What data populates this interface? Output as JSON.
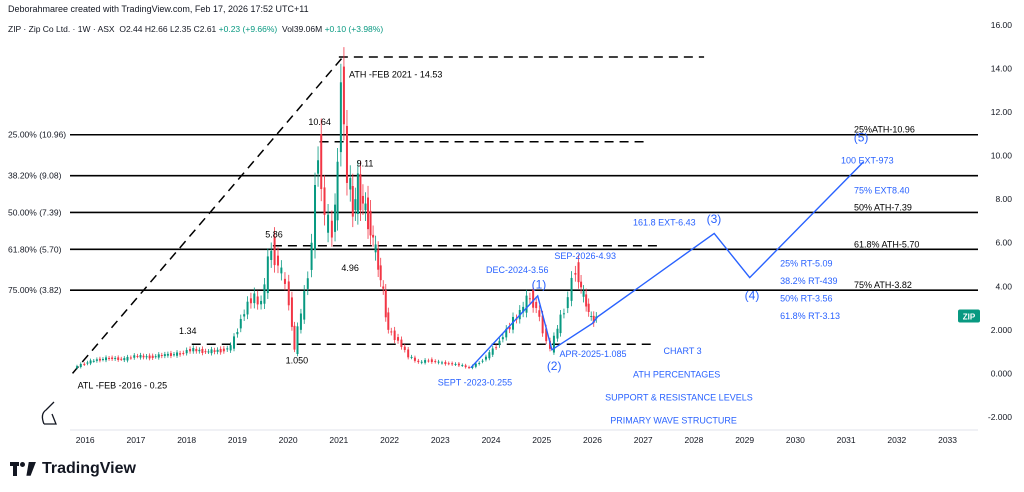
{
  "header": {
    "author_line": "Deborahmaree created with TradingView.com, Feb 17, 2026 17:52 UTC+11"
  },
  "legend": {
    "symbol": "ZIP · Zip Co Ltd. · 1W · ASX",
    "o": "O2.44",
    "h": "H2.66",
    "l": "L2.35",
    "c": "C2.61",
    "change": "+0.23 (+9.66%)",
    "vol_label": "Vol",
    "vol": "39.06M",
    "vol_change": "+0.10 (+3.98%)"
  },
  "brand": {
    "name": "TradingView"
  },
  "ticker_badge": "ZIP",
  "colors": {
    "up": "#089981",
    "down": "#f23645",
    "annotation": "#2962ff",
    "level": "#000000"
  },
  "chart_data": {
    "type": "line",
    "symbol": "ZIP",
    "ylim": [
      -2.6,
      16
    ],
    "y_ticks": [
      "16.00",
      "14.00",
      "12.00",
      "10.00",
      "8.00",
      "6.00",
      "4.00",
      "2.000",
      "0.000",
      "-2.000"
    ],
    "y_tick_values": [
      16,
      14,
      12,
      10,
      8,
      6,
      4,
      2,
      0,
      -2
    ],
    "x_ticks": [
      "2016",
      "2017",
      "2018",
      "2019",
      "2020",
      "2021",
      "2022",
      "2023",
      "2024",
      "2025",
      "2026",
      "2027",
      "2028",
      "2029",
      "2030",
      "2031",
      "2032",
      "2033"
    ],
    "x_tick_values": [
      2016,
      2017,
      2018,
      2019,
      2020,
      2021,
      2022,
      2023,
      2024,
      2025,
      2026,
      2027,
      2028,
      2029,
      2030,
      2031,
      2032,
      2033
    ],
    "xlim": [
      2015.7,
      2033.6
    ],
    "price_series": {
      "x": [
        2015.8,
        2015.95,
        2016.2,
        2016.5,
        2016.8,
        2017.0,
        2017.3,
        2017.6,
        2017.9,
        2018.1,
        2018.4,
        2018.7,
        2018.9,
        2019.1,
        2019.3,
        2019.5,
        2019.7,
        2019.9,
        2020.05,
        2020.15,
        2020.22,
        2020.35,
        2020.5,
        2020.62,
        2020.75,
        2020.9,
        2021.0,
        2021.08,
        2021.12,
        2021.2,
        2021.3,
        2021.4,
        2021.5,
        2021.6,
        2021.7,
        2021.8,
        2021.9,
        2022.0,
        2022.2,
        2022.4,
        2022.6,
        2022.8,
        2023.0,
        2023.2,
        2023.4,
        2023.6,
        2023.8,
        2024.0,
        2024.2,
        2024.4,
        2024.6,
        2024.8,
        2024.92,
        2025.05,
        2025.2,
        2025.28,
        2025.4,
        2025.55,
        2025.7,
        2025.8,
        2025.9,
        2026.0,
        2026.1
      ],
      "y": [
        0.25,
        0.4,
        0.6,
        0.7,
        0.65,
        0.8,
        0.75,
        0.85,
        0.9,
        1.1,
        1.0,
        1.05,
        1.2,
        2.5,
        3.5,
        3.2,
        5.86,
        4.5,
        3.4,
        1.05,
        2.0,
        3.5,
        6.0,
        10.64,
        7.0,
        6.5,
        9.0,
        14.53,
        11.0,
        9.11,
        7.5,
        8.5,
        7.8,
        7.2,
        6.0,
        4.96,
        3.6,
        2.0,
        1.5,
        0.8,
        0.5,
        0.6,
        0.5,
        0.45,
        0.4,
        0.255,
        0.5,
        0.9,
        1.5,
        2.2,
        2.8,
        3.56,
        3.0,
        2.0,
        1.085,
        1.6,
        2.5,
        3.5,
        4.93,
        3.8,
        3.2,
        2.44,
        2.61
      ]
    },
    "levels": [
      {
        "pct": "25.00% (10.96)",
        "value": 10.96,
        "label": "25%ATH-10.96"
      },
      {
        "pct": "38.20% (9.08)",
        "value": 9.08,
        "label": "75% EXT8.40",
        "label_value": 8.4
      },
      {
        "pct": "50.00% (7.39)",
        "value": 7.39,
        "label": "50% ATH-7.39"
      },
      {
        "pct": "61.80% (5.70)",
        "value": 5.7,
        "label": "61.8% ATH-5.70"
      },
      {
        "pct": "75.00% (3.82)",
        "value": 3.82,
        "label": "75% ATH-3.82"
      }
    ],
    "dashed_levels": [
      {
        "y": 14.53,
        "x0": 2021.0,
        "x1": 2028.2
      },
      {
        "y": 10.64,
        "x0": 2020.62,
        "x1": 2027.1
      },
      {
        "y": 5.86,
        "x0": 2019.7,
        "x1": 2027.3
      },
      {
        "y": 3.82,
        "x0": 2020.2,
        "x1": 2027.2
      },
      {
        "y": 1.34,
        "x0": 2018.1,
        "x1": 2027.2
      }
    ],
    "black_trend": {
      "x": [
        2015.75,
        2021.08
      ],
      "y": [
        0.0,
        14.53
      ]
    },
    "blue_wave": {
      "x": [
        2023.6,
        2024.92,
        2025.2,
        2026.0,
        2026.1,
        2028.4,
        2029.1,
        2031.35
      ],
      "y": [
        0.255,
        3.56,
        1.085,
        2.3,
        2.6,
        6.43,
        4.4,
        9.73
      ]
    },
    "annotations": [
      {
        "text": "ATH -FEB 2021 - 14.53",
        "x": 2021.2,
        "y": 13.6,
        "color": "#000000"
      },
      {
        "text": "10.64",
        "x": 2020.4,
        "y": 11.4,
        "color": "#000000"
      },
      {
        "text": "9.11",
        "x": 2021.35,
        "y": 9.5,
        "color": "#000000"
      },
      {
        "text": "5.86",
        "x": 2019.55,
        "y": 6.25,
        "color": "#000000"
      },
      {
        "text": "4.96",
        "x": 2021.05,
        "y": 4.7,
        "color": "#000000"
      },
      {
        "text": "1.34",
        "x": 2017.85,
        "y": 1.8,
        "color": "#000000"
      },
      {
        "text": "1.050",
        "x": 2019.95,
        "y": 0.45,
        "color": "#000000"
      },
      {
        "text": "ATL -FEB -2016 - 0.25",
        "x": 2015.85,
        "y": -0.7,
        "color": "#000000"
      },
      {
        "text": "DEC-2024-3.56",
        "x": 2023.9,
        "y": 4.6,
        "color": "#2962ff"
      },
      {
        "text": "(1)",
        "x": 2024.8,
        "y": 3.9,
        "color": "#2962ff",
        "size": 12
      },
      {
        "text": "SEP-2026-4.93",
        "x": 2025.25,
        "y": 5.25,
        "color": "#2962ff"
      },
      {
        "text": "(2)",
        "x": 2025.1,
        "y": 0.15,
        "color": "#2962ff",
        "size": 12
      },
      {
        "text": "APR-2025-1.085",
        "x": 2025.35,
        "y": 0.75,
        "color": "#2962ff"
      },
      {
        "text": "SEPT -2023-0.255",
        "x": 2022.95,
        "y": -0.55,
        "color": "#2962ff"
      },
      {
        "text": "161.8 EXT-6.43",
        "x": 2026.8,
        "y": 6.8,
        "color": "#2962ff"
      },
      {
        "text": "(3)",
        "x": 2028.25,
        "y": 6.9,
        "color": "#2962ff",
        "size": 12
      },
      {
        "text": "(4)",
        "x": 2029.0,
        "y": 3.4,
        "color": "#2962ff",
        "size": 12
      },
      {
        "text": "(5)",
        "x": 2031.15,
        "y": 10.65,
        "color": "#2962ff",
        "size": 12
      },
      {
        "text": "100 EXT-973",
        "x": 2030.9,
        "y": 9.65,
        "color": "#2962ff"
      },
      {
        "text": "25% RT-5.09",
        "x": 2029.7,
        "y": 4.9,
        "color": "#2962ff"
      },
      {
        "text": "38.2% RT-439",
        "x": 2029.7,
        "y": 4.1,
        "color": "#2962ff"
      },
      {
        "text": "50% RT-3.56",
        "x": 2029.7,
        "y": 3.3,
        "color": "#2962ff"
      },
      {
        "text": "61.8% RT-3.13",
        "x": 2029.7,
        "y": 2.5,
        "color": "#2962ff"
      },
      {
        "text": "CHART 3",
        "x": 2027.4,
        "y": 0.9,
        "color": "#2962ff"
      },
      {
        "text": "ATH PERCENTAGES",
        "x": 2026.8,
        "y": -0.2,
        "color": "#2962ff"
      },
      {
        "text": "SUPPORT & RESISTANCE LEVELS",
        "x": 2026.25,
        "y": -1.25,
        "color": "#2962ff"
      },
      {
        "text": "PRIMARY WAVE STRUCTURE",
        "x": 2026.35,
        "y": -2.3,
        "color": "#2962ff"
      }
    ]
  }
}
